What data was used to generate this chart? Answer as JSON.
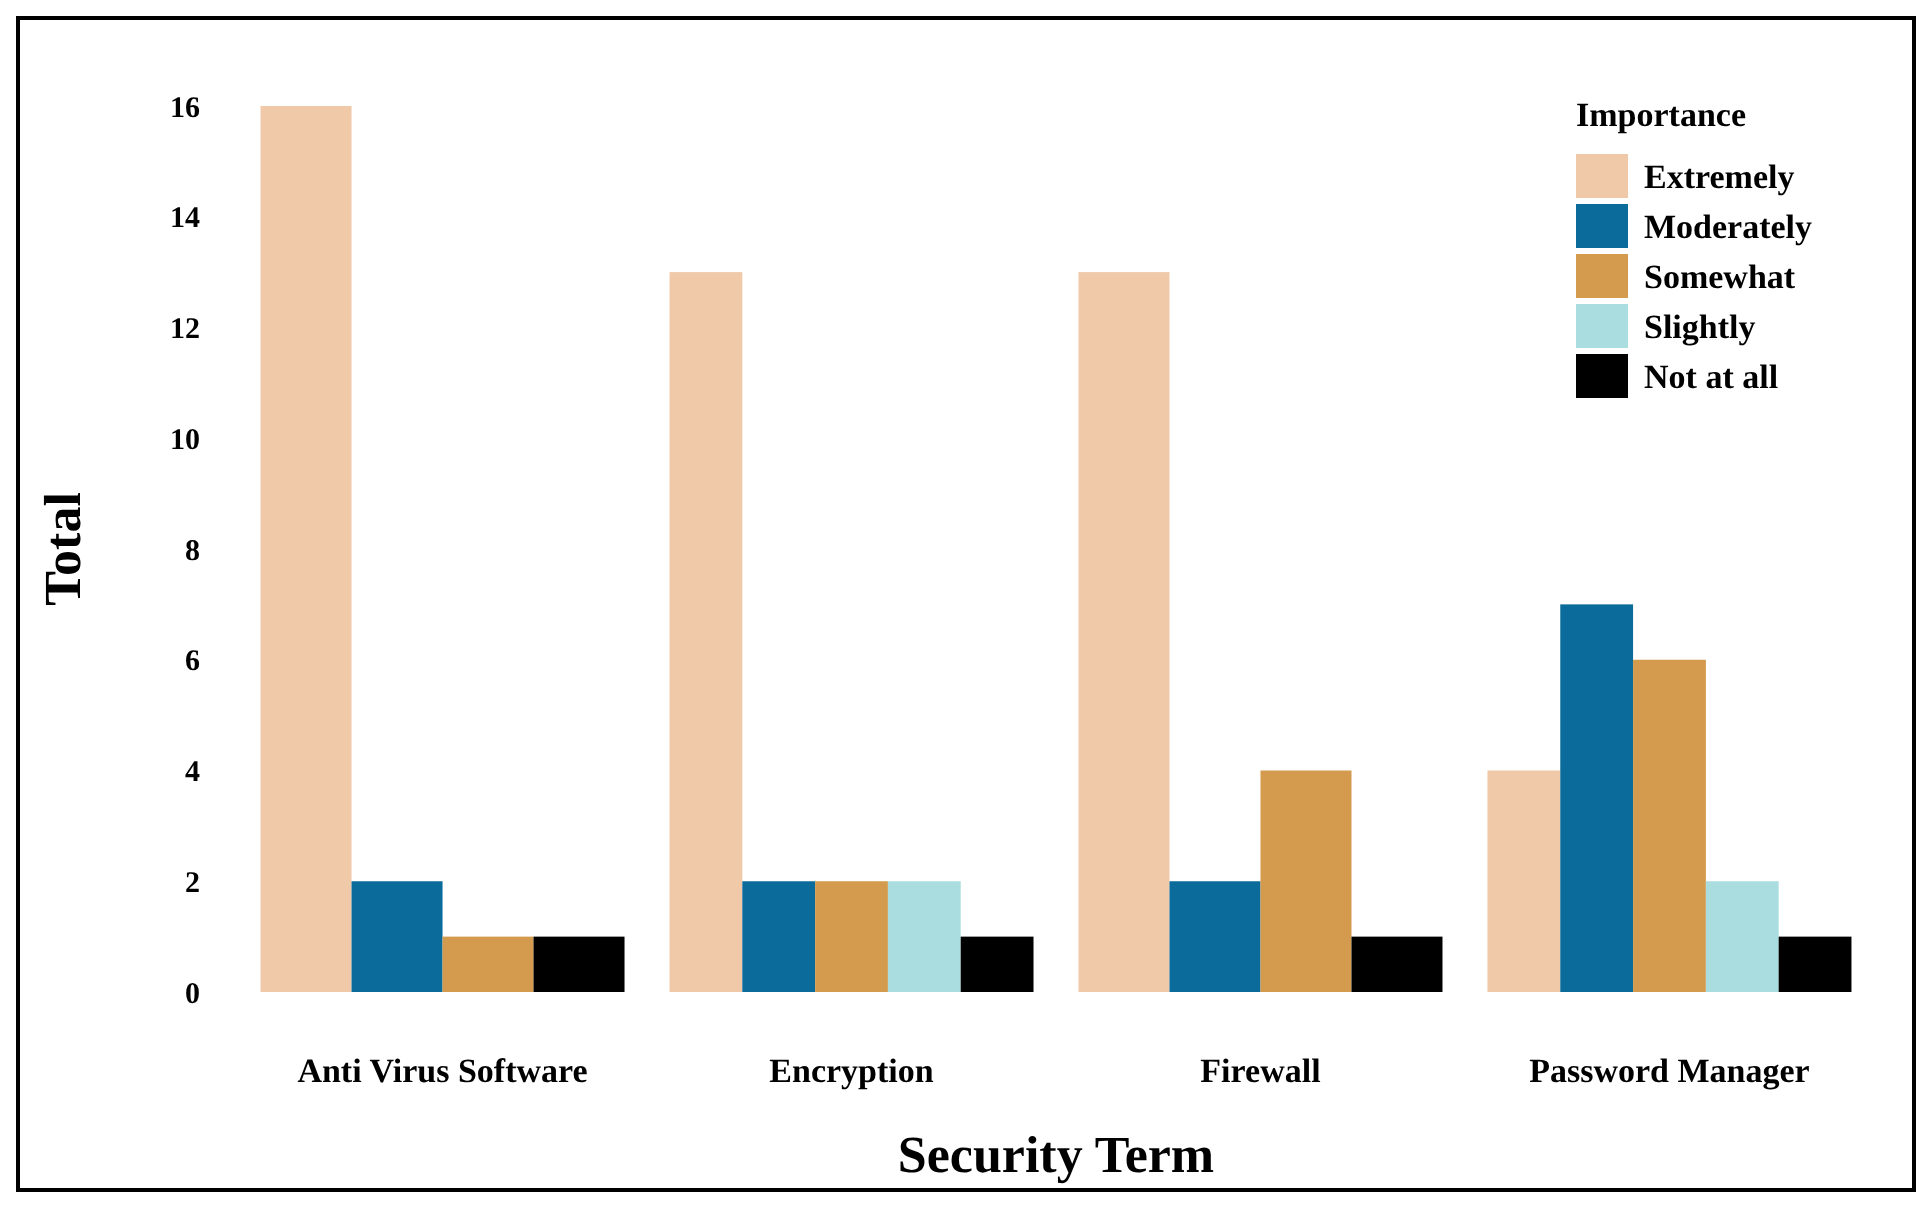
{
  "chart_data": {
    "type": "bar",
    "xlabel": "Security Term",
    "ylabel": "Total",
    "legend_title": "Importance",
    "legend": "top right",
    "grid": false,
    "categories": [
      "Anti Virus Software",
      "Encryption",
      "Firewall",
      "Password Manager"
    ],
    "ylim": [
      0,
      16
    ],
    "yticks": [
      0,
      2,
      4,
      6,
      8,
      10,
      12,
      14,
      16
    ],
    "series": [
      {
        "name": "Extremely",
        "color": "#f0c9a9",
        "values": [
          16,
          13,
          13,
          4
        ]
      },
      {
        "name": "Moderately",
        "color": "#0b6b9b",
        "values": [
          2,
          2,
          2,
          7
        ]
      },
      {
        "name": "Somewhat",
        "color": "#d49a4e",
        "values": [
          1,
          2,
          4,
          6
        ]
      },
      {
        "name": "Slightly",
        "color": "#a9dde0",
        "values": [
          null,
          2,
          null,
          2
        ]
      },
      {
        "name": "Not at all",
        "color": "#000000",
        "values": [
          1,
          1,
          1,
          1
        ]
      }
    ]
  }
}
